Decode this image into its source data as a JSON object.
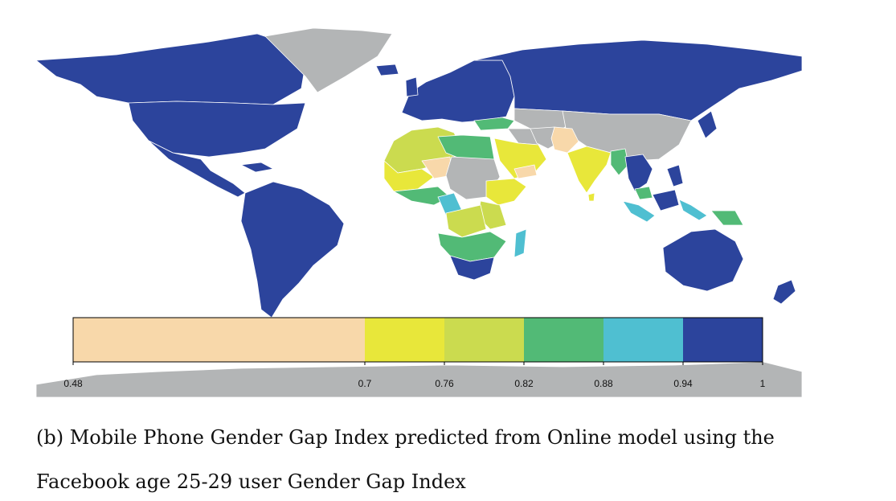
{
  "map": {
    "colors": {
      "ocean": "#ffffff",
      "no_data": "#b3b5b6",
      "border": "#ffffff"
    },
    "legend": {
      "ticks": [
        "0.48",
        "0.7",
        "0.76",
        "0.82",
        "0.88",
        "0.94",
        "1"
      ],
      "bins": [
        {
          "from": 0.48,
          "to": 0.7,
          "color": "#f8d8aa"
        },
        {
          "from": 0.7,
          "to": 0.76,
          "color": "#e8e73a"
        },
        {
          "from": 0.76,
          "to": 0.82,
          "color": "#cbdb4f"
        },
        {
          "from": 0.82,
          "to": 0.88,
          "color": "#52ba76"
        },
        {
          "from": 0.88,
          "to": 0.94,
          "color": "#4fbfd1"
        },
        {
          "from": 0.94,
          "to": 1.0,
          "color": "#2c449c"
        }
      ]
    }
  },
  "caption": {
    "line1": "(b) Mobile Phone Gender Gap Index predicted from Online model using the",
    "line2": "Facebook age 25-29 user Gender Gap Index"
  }
}
